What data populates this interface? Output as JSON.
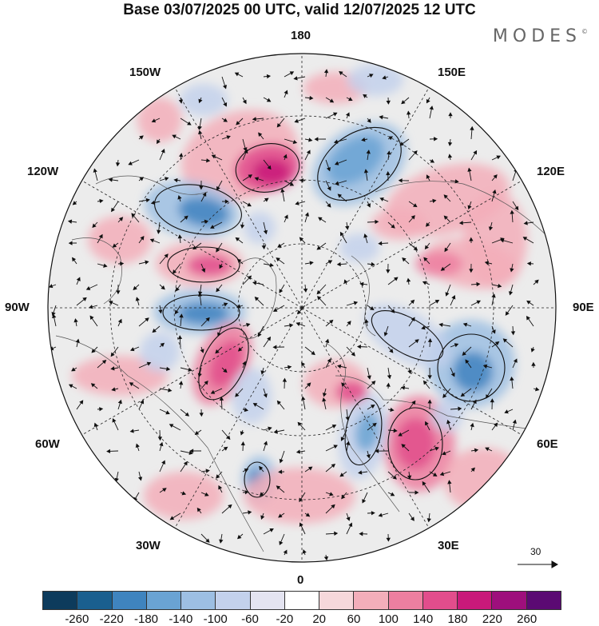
{
  "title": "Base 03/07/2025 00 UTC, valid 12/07/2025 12 UTC",
  "brand": "MODES",
  "brand_mark": "©",
  "longitude_labels": {
    "top": "180",
    "bottom": "0",
    "left": "90W",
    "right": "90E",
    "upper_left_outer": "150W",
    "upper_left_inner": "120W",
    "upper_right_outer": "150E",
    "upper_right_inner": "120E",
    "lower_left_outer": "30W",
    "lower_left_inner": "60W",
    "lower_right_outer": "30E",
    "lower_right_inner": "60E"
  },
  "reference_vector": {
    "label": "30"
  },
  "colorbar": {
    "colors": [
      "#0d3b5c",
      "#1a5f8f",
      "#3f84bf",
      "#6aa3d3",
      "#9dbfe3",
      "#c3d1ec",
      "#e4e4f1",
      "#ffffff",
      "#f6d8db",
      "#f3aeba",
      "#ed7fa0",
      "#e24d8c",
      "#c9197a",
      "#9e0f7c",
      "#5b0a73"
    ],
    "ticks": [
      "-260",
      "-220",
      "-180",
      "-140",
      "-100",
      "-60",
      "-20",
      "20",
      "60",
      "100",
      "140",
      "180",
      "220",
      "260"
    ]
  }
}
